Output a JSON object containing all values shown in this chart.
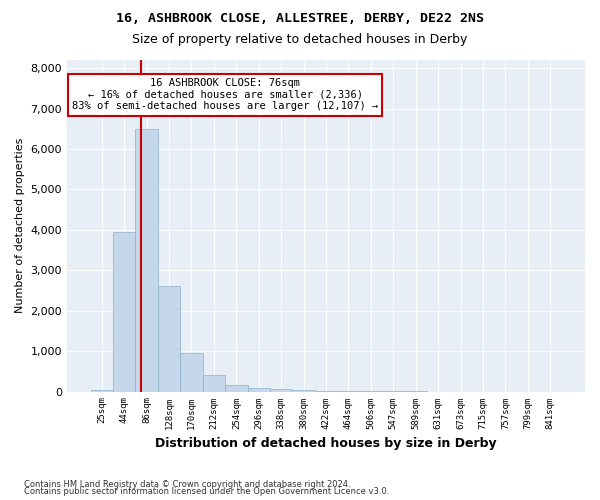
{
  "title1": "16, ASHBROOK CLOSE, ALLESTREE, DERBY, DE22 2NS",
  "title2": "Size of property relative to detached houses in Derby",
  "xlabel": "Distribution of detached houses by size in Derby",
  "ylabel": "Number of detached properties",
  "footer1": "Contains HM Land Registry data © Crown copyright and database right 2024.",
  "footer2": "Contains public sector information licensed under the Open Government Licence v3.0.",
  "property_size": 76,
  "annotation_title": "16 ASHBROOK CLOSE: 76sqm",
  "annotation_line1": "← 16% of detached houses are smaller (2,336)",
  "annotation_line2": "83% of semi-detached houses are larger (12,107) →",
  "bar_color": "#c5d8eb",
  "bar_edge_color": "#8ab0cc",
  "vline_color": "#cc0000",
  "annotation_box_color": "#ffffff",
  "annotation_box_edge": "#cc0000",
  "background_color": "#e8eef5",
  "bin_labels": [
    "25sqm",
    "44sqm",
    "86sqm",
    "128sqm",
    "170sqm",
    "212sqm",
    "254sqm",
    "296sqm",
    "338sqm",
    "380sqm",
    "422sqm",
    "464sqm",
    "506sqm",
    "547sqm",
    "589sqm",
    "631sqm",
    "673sqm",
    "715sqm",
    "757sqm",
    "799sqm",
    "841sqm"
  ],
  "values": [
    50,
    3950,
    6500,
    2600,
    950,
    400,
    150,
    100,
    60,
    40,
    20,
    10,
    5,
    3,
    2,
    1,
    1,
    1,
    0,
    0,
    0
  ],
  "bins_numeric": [
    25,
    44,
    86,
    128,
    170,
    212,
    254,
    296,
    338,
    380,
    422,
    464,
    506,
    547,
    589,
    631,
    673,
    715,
    757,
    799,
    841
  ],
  "ylim": [
    0,
    8200
  ],
  "yticks": [
    0,
    1000,
    2000,
    3000,
    4000,
    5000,
    6000,
    7000,
    8000
  ]
}
